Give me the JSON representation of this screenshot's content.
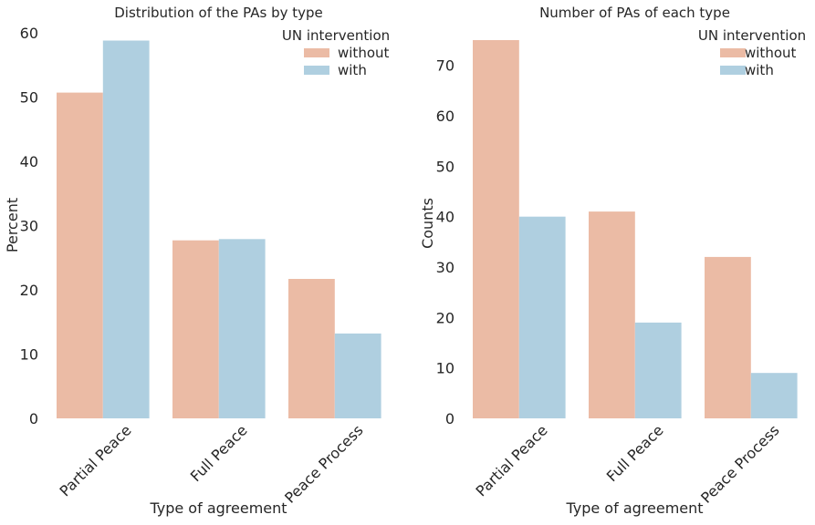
{
  "colors": {
    "without": "#ebbba5",
    "with": "#afcfe0",
    "text": "#262626"
  },
  "chart_data": [
    {
      "type": "bar",
      "title": "Distribution of the PAs by type",
      "xlabel": "Type of agreement",
      "ylabel": "Percent",
      "categories": [
        "Partial Peace",
        "Full Peace",
        "Peace Process"
      ],
      "series": [
        {
          "name": "without",
          "values": [
            50.7,
            27.7,
            21.7
          ]
        },
        {
          "name": "with",
          "values": [
            58.8,
            27.9,
            13.2
          ]
        }
      ],
      "ylim": [
        0,
        60
      ],
      "yticks": [
        "0",
        "10",
        "20",
        "30",
        "40",
        "50",
        "60"
      ],
      "legend": {
        "title": "UN intervention",
        "placement": "top-right"
      },
      "grid": false
    },
    {
      "type": "bar",
      "title": "Number of PAs of each type",
      "xlabel": "Type of agreement",
      "ylabel": "Counts",
      "categories": [
        "Partial Peace",
        "Full Peace",
        "Peace Process"
      ],
      "series": [
        {
          "name": "without",
          "values": [
            75,
            41,
            32
          ]
        },
        {
          "name": "with",
          "values": [
            40,
            19,
            9
          ]
        }
      ],
      "ylim": [
        0,
        75
      ],
      "yticks": [
        "0",
        "10",
        "20",
        "30",
        "40",
        "50",
        "60",
        "70"
      ],
      "legend": {
        "title": "UN intervention",
        "placement": "top-right"
      },
      "grid": false
    }
  ]
}
